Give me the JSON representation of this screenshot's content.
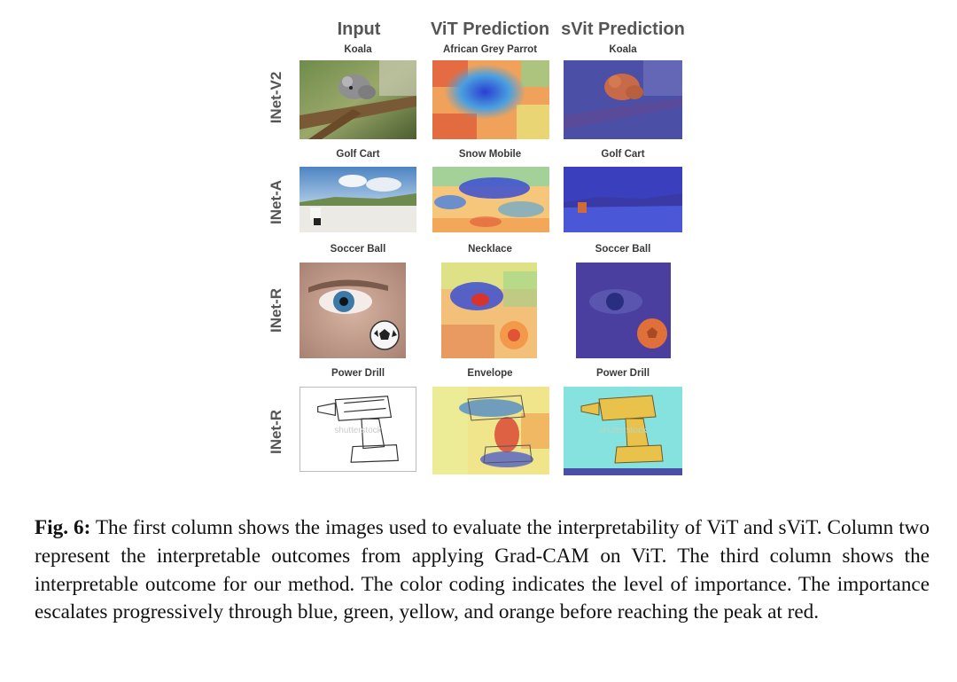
{
  "figure": {
    "columns": [
      "Input",
      "ViT Prediction",
      "sVit Prediction"
    ],
    "rows": [
      {
        "dataset": "INet-V2",
        "input_label": "Koala",
        "vit_label": "African Grey Parrot",
        "svit_label": "Koala"
      },
      {
        "dataset": "INet-A",
        "input_label": "Golf Cart",
        "vit_label": "Snow Mobile",
        "svit_label": "Golf Cart"
      },
      {
        "dataset": "INet-R",
        "input_label": "Soccer Ball",
        "vit_label": "Necklace",
        "svit_label": "Soccer Ball"
      },
      {
        "dataset": "INet-R",
        "input_label": "Power Drill",
        "vit_label": "Envelope",
        "svit_label": "Power Drill"
      }
    ],
    "watermark_text": "shutterstock"
  },
  "caption": {
    "label": "Fig. 6:",
    "text": "The first column shows the images used to evaluate the interpretability of ViT and sViT. Column two represent the interpretable outcomes from applying Grad-CAM on ViT. The third column shows the interpretable outcome for our method. The color coding indicates the level of importance. The importance escalates progressively through blue, green, yellow, and orange before reaching the peak at red."
  },
  "colors": {
    "cam_blue": "#3b4fd1",
    "cam_green": "#6fd18a",
    "cam_yellow": "#f3e07a",
    "cam_orange": "#f29a4a",
    "cam_red": "#d9342b",
    "svit_dark_overlay": "#3a3f9e",
    "svit_cyan_overlay": "#7ee0e0"
  }
}
